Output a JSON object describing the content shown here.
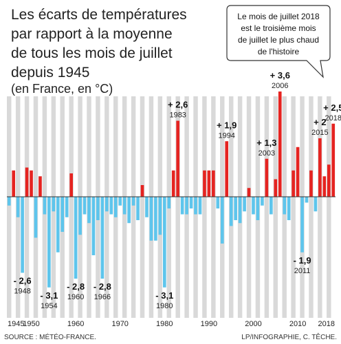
{
  "title_lines": [
    "Les écarts de températures",
    "par rapport à la moyenne",
    "de tous les mois de juillet",
    "depuis 1945"
  ],
  "subtitle": "(en France, en °C)",
  "callout_lines": [
    "Le mois de juillet 2018",
    "est le troisième mois",
    "de juillet le plus chaud",
    "de l'histoire"
  ],
  "source": "SOURCE : MÉTÉO-FRANCE.",
  "credit": "LP/INFOGRAPHIE, C. TÊCHE.",
  "colors": {
    "positive": "#e52421",
    "negative": "#5ec5ec",
    "stripe": "#d9d9d9",
    "axis": "#333333"
  },
  "chart_data": {
    "type": "bar",
    "x": [
      1945,
      1946,
      1947,
      1948,
      1949,
      1950,
      1951,
      1952,
      1953,
      1954,
      1955,
      1956,
      1957,
      1958,
      1959,
      1960,
      1961,
      1962,
      1963,
      1964,
      1965,
      1966,
      1967,
      1968,
      1969,
      1970,
      1971,
      1972,
      1973,
      1974,
      1975,
      1976,
      1977,
      1978,
      1979,
      1980,
      1981,
      1982,
      1983,
      1984,
      1985,
      1986,
      1987,
      1988,
      1989,
      1990,
      1991,
      1992,
      1993,
      1994,
      1995,
      1996,
      1997,
      1998,
      1999,
      2000,
      2001,
      2002,
      2003,
      2004,
      2005,
      2006,
      2007,
      2008,
      2009,
      2010,
      2011,
      2012,
      2013,
      2014,
      2015,
      2016,
      2017,
      2018
    ],
    "values": [
      -0.3,
      0.9,
      -0.7,
      -2.6,
      1.0,
      0.9,
      -1.4,
      0.7,
      -0.6,
      -3.1,
      -0.5,
      -1.9,
      -1.2,
      -0.7,
      0.8,
      -2.8,
      -1.3,
      -0.6,
      -0.9,
      -2.0,
      -0.8,
      -2.8,
      -0.5,
      -0.6,
      -0.7,
      -0.3,
      -0.6,
      -0.9,
      -0.3,
      -0.8,
      0.4,
      -0.7,
      -1.5,
      -1.5,
      -1.3,
      -3.1,
      -0.4,
      0.9,
      2.6,
      -0.6,
      -0.6,
      -0.4,
      -0.6,
      -0.6,
      0.9,
      0.9,
      0.9,
      -0.4,
      -1.6,
      1.9,
      -1.0,
      -0.8,
      -0.9,
      -0.5,
      0.3,
      -0.6,
      -0.8,
      -0.3,
      1.3,
      -0.6,
      0.6,
      3.6,
      -0.6,
      -0.8,
      0.9,
      1.7,
      -1.9,
      -0.2,
      0.9,
      -0.5,
      2.0,
      0.7,
      1.1,
      2.5
    ],
    "annotations": [
      {
        "year": 1948,
        "label": "- 2,6",
        "sublabel": "1948"
      },
      {
        "year": 1954,
        "label": "- 3,1",
        "sublabel": "1954"
      },
      {
        "year": 1960,
        "label": "- 2,8",
        "sublabel": "1960"
      },
      {
        "year": 1966,
        "label": "- 2,8",
        "sublabel": "1966"
      },
      {
        "year": 1980,
        "label": "- 3,1",
        "sublabel": "1980"
      },
      {
        "year": 1983,
        "label": "+ 2,6",
        "sublabel": "1983"
      },
      {
        "year": 1994,
        "label": "+ 1,9",
        "sublabel": "1994"
      },
      {
        "year": 2003,
        "label": "+ 1,3",
        "sublabel": "2003"
      },
      {
        "year": 2006,
        "label": "+ 3,6",
        "sublabel": "2006"
      },
      {
        "year": 2011,
        "label": "- 1,9",
        "sublabel": "2011"
      },
      {
        "year": 2015,
        "label": "+ 2",
        "sublabel": "2015"
      },
      {
        "year": 2018,
        "label": "+ 2,5",
        "sublabel": "2018"
      }
    ],
    "xticks": [
      "1945",
      "1950",
      "1960",
      "1970",
      "1980",
      "1990",
      "2000",
      "2010",
      "2018"
    ],
    "ylim": [
      -3.5,
      4.0
    ]
  }
}
